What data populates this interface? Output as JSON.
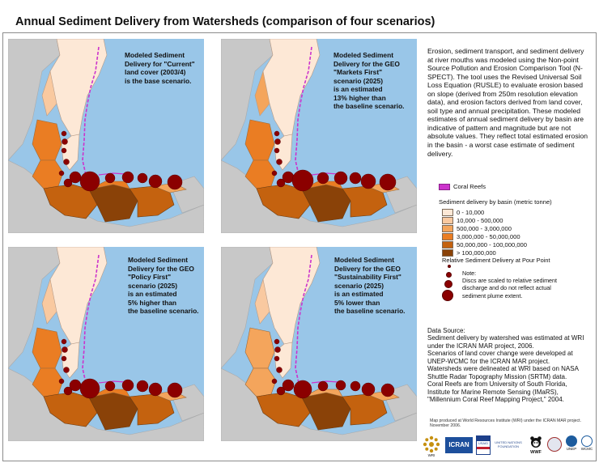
{
  "title": "Annual Sediment Delivery from Watersheds (comparison of four scenarios)",
  "maps": [
    {
      "caption": "Modeled Sediment\nDelivery for \"Current\"\nland cover (2003/4)\nis the base scenario.",
      "scenario": "Current"
    },
    {
      "caption": "Modeled Sediment\nDelivery for the GEO\n\"Markets First\"\nscenario (2025)\nis an estimated\n13% higher than\nthe baseline scenario.",
      "scenario": "Markets First"
    },
    {
      "caption": "Modeled Sediment\nDelivery for the GEO\n\"Policy First\"\nscenario (2025)\nis an estimated\n5% higher than\nthe baseline scenario.",
      "scenario": "Policy First"
    },
    {
      "caption": "Modeled Sediment\nDelivery for the GEO\n\"Sustainability First\"\nscenario (2025)\nis an estimated\n5% lower than\nthe baseline scenario.",
      "scenario": "Sustainability First"
    }
  ],
  "description": "Erosion, sediment transport, and sediment delivery at river mouths was modeled using the Non-point Source Pollution and Erosion Comparison Tool (N-SPECT). The tool uses the Revised Universal Soil Loss Equation (RUSLE) to evaluate erosion based on slope (derived from 250m resolution elevation data), and erosion factors derived from land cover, soil type and annual precipitation.  These modeled estimates of annual sediment delivery by basin are indicative of pattern and magnitude but are not absolute values. They reflect total estimated erosion in the basin - a worst case estimate of sediment delivery.",
  "legend": {
    "coral_label": "Coral Reefs",
    "coral_color": "#cc33cc",
    "sediment_heading": "Sediment delivery by basin (metric tonne)",
    "classes": [
      {
        "label": "0 - 10,000",
        "color": "#fde8d6"
      },
      {
        "label": "10,000 - 500,000",
        "color": "#f9c9a0"
      },
      {
        "label": "500,000 - 3,000,000",
        "color": "#f4a55c"
      },
      {
        "label": "3,000,000 - 50,000,000",
        "color": "#ea7d23"
      },
      {
        "label": "50,000,000 - 100,000,000",
        "color": "#c4620f"
      },
      {
        "label": "> 100,000,000",
        "color": "#8a4208"
      }
    ],
    "disc_heading": "Relative Sediment Delivery at Pour Point",
    "disc_color": "#8b0000",
    "note": "Note:\nDiscs are scaled to relative sediment\ndischarge and do not reflect actual\nsediment plume extent."
  },
  "source": "Data Source:\nSediment delivery by watershed was estimated at WRI under the ICRAN MAR project, 2006.\nScenarios of land cover change were developed at UNEP-WCMC for the ICRAN MAR project.\nWatersheds were delineated at WRI based on NASA Shuttle Radar Topography Mission (SRTM) data.\nCoral Reefs are from University of South Florida, Institute for Marine Remote Sensing (IMaRS), \"Millennium Coral Reef Mapping Project,\" 2004.",
  "credit": "Map produced at World Resources Institute (WRI) under the ICRAN MAR project. November 2006.",
  "logos": {
    "wri": "WRI",
    "icran": "ICRAN",
    "usaid": "USAID",
    "un": "UNITED NATIONS FOUNDATION",
    "wwf": "WWF",
    "unep": "UNEP",
    "wcmc": "WCMC"
  },
  "colors": {
    "sea": "#99c6e8",
    "land_gray": "#c8c8c8",
    "coral": "#cc33cc",
    "disc": "#8b0000"
  }
}
